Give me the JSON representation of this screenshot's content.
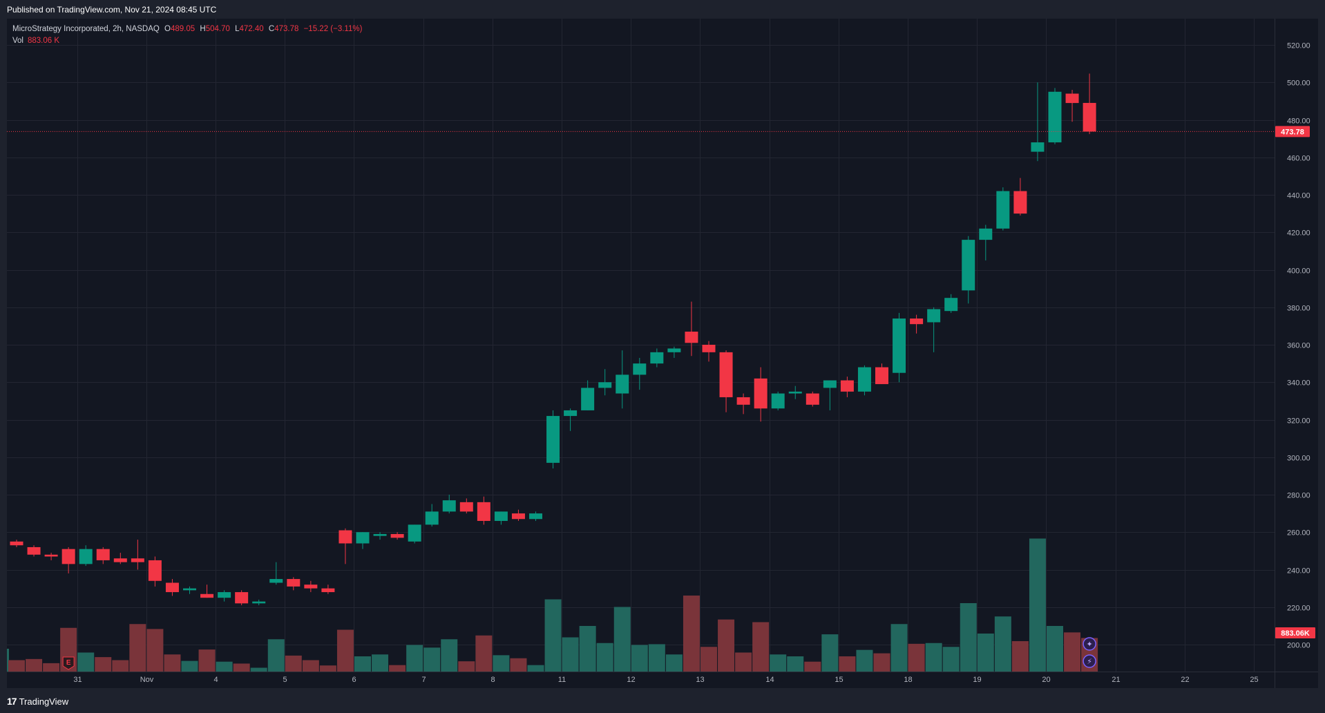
{
  "header": {
    "published": "Published on TradingView.com, Nov 21, 2024 08:45 UTC"
  },
  "legend": {
    "symbol": "MicroStrategy Incorporated, 2h, NASDAQ",
    "o_label": "O",
    "o_value": "489.05",
    "h_label": "H",
    "h_value": "504.70",
    "l_label": "L",
    "l_value": "472.40",
    "c_label": "C",
    "c_value": "473.78",
    "change": "−15.22 (−3.11%)",
    "vol_label": "Vol",
    "vol_value": "883.06 K"
  },
  "footer": {
    "logo_mark": "17",
    "logo_text": "TradingView"
  },
  "colors": {
    "up": "#089981",
    "down": "#f23645",
    "up_volume": "#22675e",
    "down_volume": "#7a343a",
    "grid": "#232632",
    "axis_text": "#b2b5be",
    "background": "#131722"
  },
  "chart_data": {
    "type": "candlestick",
    "symbol": "MSTR",
    "interval": "2h",
    "price_axis": {
      "min": 190,
      "max": 530,
      "ticks": [
        200,
        220,
        240,
        260,
        280,
        300,
        320,
        340,
        360,
        380,
        400,
        420,
        440,
        460,
        480,
        500,
        520
      ]
    },
    "last_price": 473.78,
    "last_price_label": "473.78",
    "volume_label": "883.06K",
    "time_labels": [
      {
        "label": "31",
        "bar": 3.5
      },
      {
        "label": "Nov",
        "bar": 7.5
      },
      {
        "label": "4",
        "bar": 11.5
      },
      {
        "label": "5",
        "bar": 15.5
      },
      {
        "label": "6",
        "bar": 19.5
      },
      {
        "label": "7",
        "bar": 23.5
      },
      {
        "label": "8",
        "bar": 27.5
      },
      {
        "label": "11",
        "bar": 31.5
      },
      {
        "label": "12",
        "bar": 35.5
      },
      {
        "label": "13",
        "bar": 39.5
      },
      {
        "label": "14",
        "bar": 43.5
      },
      {
        "label": "15",
        "bar": 47.5
      },
      {
        "label": "18",
        "bar": 51.5
      },
      {
        "label": "19",
        "bar": 55.5
      },
      {
        "label": "20",
        "bar": 59.5
      },
      {
        "label": "21",
        "bar": 63.5
      },
      {
        "label": "22",
        "bar": 67.5
      },
      {
        "label": "25",
        "bar": 71.5
      }
    ],
    "candles": [
      {
        "o": 255,
        "h": 256,
        "l": 252,
        "c": 253,
        "v": 0.3
      },
      {
        "o": 252,
        "h": 253,
        "l": 247,
        "c": 248,
        "v": 0.33
      },
      {
        "o": 248,
        "h": 249,
        "l": 245,
        "c": 247,
        "v": 0.22
      },
      {
        "o": 251,
        "h": 252,
        "l": 238,
        "c": 243,
        "v": 1.15
      },
      {
        "o": 243,
        "h": 253,
        "l": 242,
        "c": 251,
        "v": 0.5
      },
      {
        "o": 251,
        "h": 252,
        "l": 243,
        "c": 245,
        "v": 0.38
      },
      {
        "o": 246,
        "h": 249,
        "l": 243,
        "c": 244,
        "v": 0.3
      },
      {
        "o": 246,
        "h": 256,
        "l": 240,
        "c": 244,
        "v": 1.25
      },
      {
        "o": 245,
        "h": 247,
        "l": 231,
        "c": 234,
        "v": 1.12
      },
      {
        "o": 233,
        "h": 235,
        "l": 226,
        "c": 228,
        "v": 0.45
      },
      {
        "o": 229,
        "h": 231,
        "l": 227,
        "c": 230,
        "v": 0.28
      },
      {
        "o": 227,
        "h": 232,
        "l": 225,
        "c": 225,
        "v": 0.58
      },
      {
        "o": 225,
        "h": 229,
        "l": 223,
        "c": 228,
        "v": 0.26
      },
      {
        "o": 228,
        "h": 229,
        "l": 221,
        "c": 222,
        "v": 0.21
      },
      {
        "o": 222,
        "h": 224,
        "l": 221,
        "c": 223,
        "v": 0.1
      },
      {
        "o": 233,
        "h": 244,
        "l": 232,
        "c": 235,
        "v": 0.85
      },
      {
        "o": 235,
        "h": 236,
        "l": 229,
        "c": 231,
        "v": 0.42
      },
      {
        "o": 232,
        "h": 234,
        "l": 228,
        "c": 230,
        "v": 0.3
      },
      {
        "o": 230,
        "h": 232,
        "l": 227,
        "c": 228,
        "v": 0.16
      },
      {
        "o": 261,
        "h": 262,
        "l": 243,
        "c": 254,
        "v": 1.1
      },
      {
        "o": 254,
        "h": 260,
        "l": 251,
        "c": 260,
        "v": 0.4
      },
      {
        "o": 258,
        "h": 260,
        "l": 256,
        "c": 259,
        "v": 0.45
      },
      {
        "o": 259,
        "h": 260,
        "l": 256,
        "c": 257,
        "v": 0.17
      },
      {
        "o": 255,
        "h": 264,
        "l": 254,
        "c": 264,
        "v": 0.7
      },
      {
        "o": 264,
        "h": 275,
        "l": 263,
        "c": 271,
        "v": 0.63
      },
      {
        "o": 271,
        "h": 280,
        "l": 270,
        "c": 277,
        "v": 0.85
      },
      {
        "o": 276,
        "h": 278,
        "l": 270,
        "c": 271,
        "v": 0.27
      },
      {
        "o": 276,
        "h": 279,
        "l": 264,
        "c": 266,
        "v": 0.95
      },
      {
        "o": 266,
        "h": 271,
        "l": 264,
        "c": 271,
        "v": 0.43
      },
      {
        "o": 270,
        "h": 272,
        "l": 266,
        "c": 267,
        "v": 0.35
      },
      {
        "o": 267,
        "h": 271,
        "l": 266,
        "c": 270,
        "v": 0.17
      },
      {
        "o": 297,
        "h": 325,
        "l": 294,
        "c": 322,
        "v": 1.9
      },
      {
        "o": 322,
        "h": 326,
        "l": 314,
        "c": 325,
        "v": 0.9
      },
      {
        "o": 325,
        "h": 341,
        "l": 325,
        "c": 337,
        "v": 1.2
      },
      {
        "o": 337,
        "h": 347,
        "l": 333,
        "c": 340,
        "v": 0.75
      },
      {
        "o": 334,
        "h": 357,
        "l": 326,
        "c": 344,
        "v": 1.7
      },
      {
        "o": 344,
        "h": 353,
        "l": 336,
        "c": 350,
        "v": 0.7
      },
      {
        "o": 350,
        "h": 358,
        "l": 348,
        "c": 356,
        "v": 0.72
      },
      {
        "o": 356,
        "h": 359,
        "l": 353,
        "c": 358,
        "v": 0.45
      },
      {
        "o": 367,
        "h": 383,
        "l": 354,
        "c": 361,
        "v": 2.0
      },
      {
        "o": 360,
        "h": 362,
        "l": 351,
        "c": 356,
        "v": 0.65
      },
      {
        "o": 356,
        "h": 357,
        "l": 324,
        "c": 332,
        "v": 1.37
      },
      {
        "o": 332,
        "h": 334,
        "l": 323,
        "c": 328,
        "v": 0.5
      },
      {
        "o": 342,
        "h": 348,
        "l": 319,
        "c": 326,
        "v": 1.3
      },
      {
        "o": 326,
        "h": 335,
        "l": 325,
        "c": 334,
        "v": 0.45
      },
      {
        "o": 334,
        "h": 338,
        "l": 331,
        "c": 335,
        "v": 0.4
      },
      {
        "o": 334,
        "h": 335,
        "l": 327,
        "c": 328,
        "v": 0.26
      },
      {
        "o": 337,
        "h": 341,
        "l": 325,
        "c": 341,
        "v": 0.98
      },
      {
        "o": 341,
        "h": 343,
        "l": 332,
        "c": 335,
        "v": 0.4
      },
      {
        "o": 335,
        "h": 349,
        "l": 333,
        "c": 348,
        "v": 0.57
      },
      {
        "o": 348,
        "h": 350,
        "l": 339,
        "c": 339,
        "v": 0.48
      },
      {
        "o": 345,
        "h": 377,
        "l": 340,
        "c": 374,
        "v": 1.25
      },
      {
        "o": 374,
        "h": 376,
        "l": 366,
        "c": 371,
        "v": 0.73
      },
      {
        "o": 372,
        "h": 380,
        "l": 356,
        "c": 379,
        "v": 0.75
      },
      {
        "o": 378,
        "h": 387,
        "l": 377,
        "c": 385,
        "v": 0.65
      },
      {
        "o": 389,
        "h": 418,
        "l": 382,
        "c": 416,
        "v": 1.8
      },
      {
        "o": 416,
        "h": 424,
        "l": 405,
        "c": 422,
        "v": 1.0
      },
      {
        "o": 422,
        "h": 444,
        "l": 421,
        "c": 442,
        "v": 1.45
      },
      {
        "o": 442,
        "h": 449,
        "l": 429,
        "c": 430,
        "v": 0.8
      },
      {
        "o": 463,
        "h": 500,
        "l": 458,
        "c": 468,
        "v": 3.5
      },
      {
        "o": 468,
        "h": 497,
        "l": 467,
        "c": 495,
        "v": 1.2
      },
      {
        "o": 494,
        "h": 496,
        "l": 479,
        "c": 489,
        "v": 1.03
      },
      {
        "o": 489.05,
        "h": 504.7,
        "l": 472.4,
        "c": 473.78,
        "v": 0.88306
      }
    ]
  }
}
